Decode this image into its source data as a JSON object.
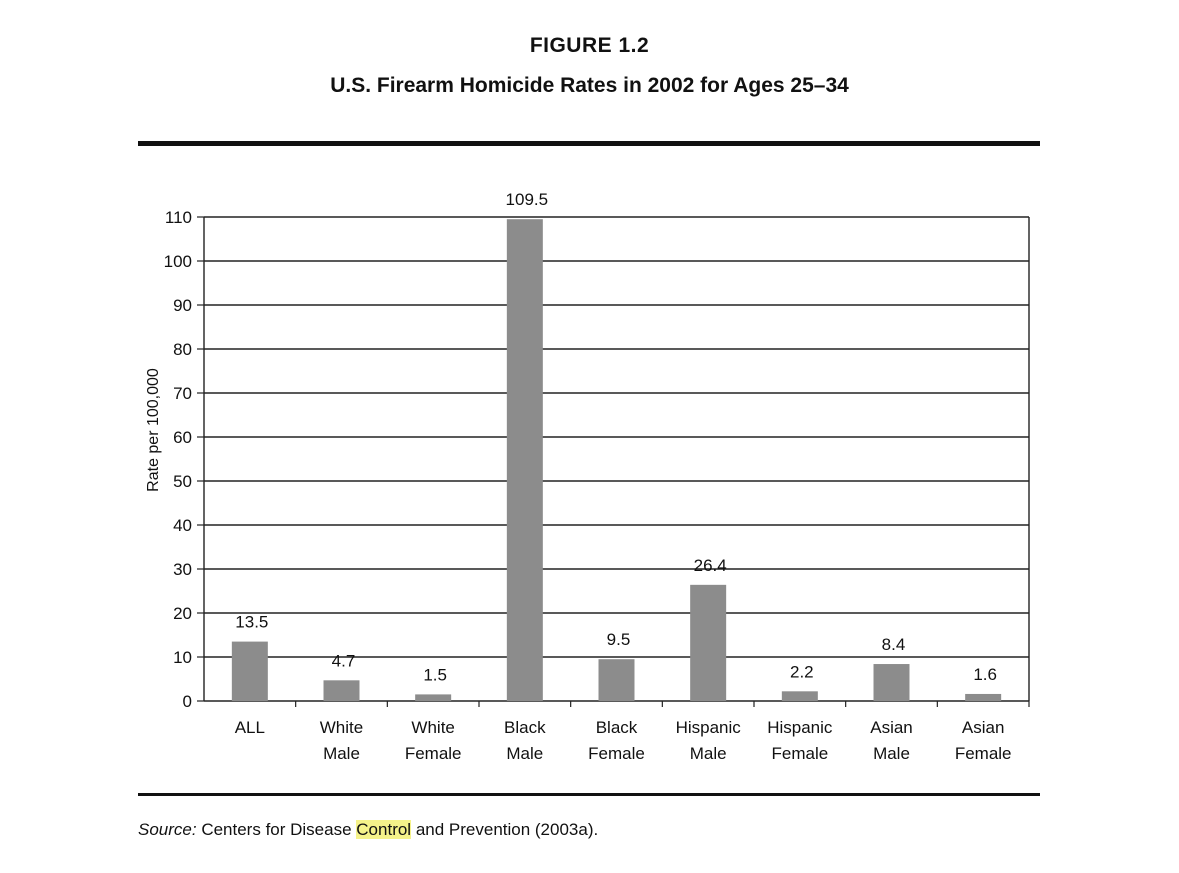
{
  "figure": {
    "label": "FIGURE 1.2",
    "title": "U.S. Firearm Homicide Rates in 2002 for Ages 25–34"
  },
  "source": {
    "label": "Source:",
    "text_before": " Centers for Disease ",
    "highlighted": "Control",
    "text_after": " and Prevention (2003a)."
  },
  "chart_data": {
    "type": "bar",
    "title": "U.S. Firearm Homicide Rates in 2002 for Ages 25–34",
    "xlabel": "",
    "ylabel": "Rate per 100,000",
    "ylim": [
      0,
      110
    ],
    "yticks": [
      0,
      10,
      20,
      30,
      40,
      50,
      60,
      70,
      80,
      90,
      100,
      110
    ],
    "grid": true,
    "categories": [
      [
        "ALL"
      ],
      [
        "White",
        "Male"
      ],
      [
        "White",
        "Female"
      ],
      [
        "Black",
        "Male"
      ],
      [
        "Black",
        "Female"
      ],
      [
        "Hispanic",
        "Male"
      ],
      [
        "Hispanic",
        "Female"
      ],
      [
        "Asian",
        "Male"
      ],
      [
        "Asian",
        "Female"
      ]
    ],
    "values": [
      13.5,
      4.7,
      1.5,
      109.5,
      9.5,
      26.4,
      2.2,
      8.4,
      1.6
    ],
    "value_labels": [
      "13.5",
      "4.7",
      "1.5",
      "109.5",
      "9.5",
      "26.4",
      "2.2",
      "8.4",
      "1.6"
    ],
    "bar_color": "#8c8c8c"
  }
}
